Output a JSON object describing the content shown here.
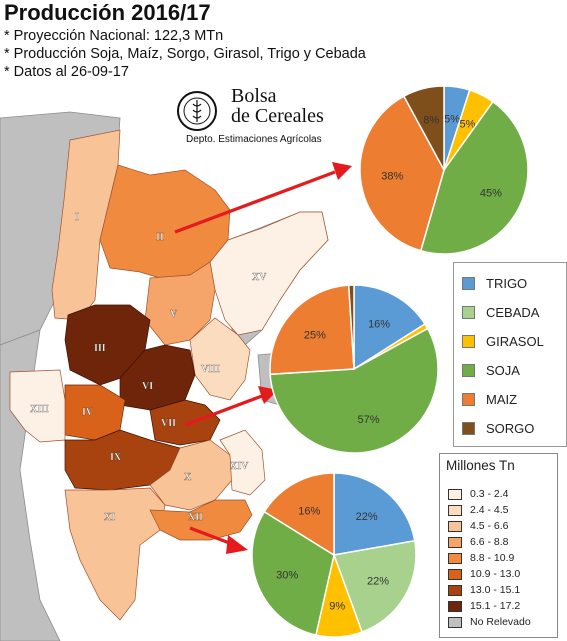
{
  "header": {
    "title": "Producción 2016/17",
    "lines": [
      "* Proyección Nacional: 122,3 MTn",
      "* Producción Soja, Maíz, Sorgo, Girasol, Trigo y Cebada",
      "* Datos al 26-09-17"
    ]
  },
  "logo": {
    "line1": "Bolsa",
    "line2": "de Cereales",
    "dept": "Depto. Estimaciones Agrícolas"
  },
  "crops": [
    {
      "name": "TRIGO",
      "color": "#5b9bd5"
    },
    {
      "name": "CEBADA",
      "color": "#a9d18e"
    },
    {
      "name": "GIRASOL",
      "color": "#ffc000"
    },
    {
      "name": "SOJA",
      "color": "#70ad47"
    },
    {
      "name": "MAIZ",
      "color": "#ed7d31"
    },
    {
      "name": "SORGO",
      "color": "#7f4f1b"
    }
  ],
  "production_legend": {
    "title": "Millones Tn",
    "classes": [
      {
        "label": "0.3 - 2.4",
        "color": "#fdf1e6"
      },
      {
        "label": "2.4 - 4.5",
        "color": "#fcdcbf"
      },
      {
        "label": "4.5 - 6.6",
        "color": "#f9c398"
      },
      {
        "label": "6.6 - 8.8",
        "color": "#f5a56a"
      },
      {
        "label": "8.8 - 10.9",
        "color": "#ef8a3f"
      },
      {
        "label": "10.9 - 13.0",
        "color": "#d9621a"
      },
      {
        "label": "13.0 - 15.1",
        "color": "#a8430f"
      },
      {
        "label": "15.1 - 17.2",
        "color": "#6e250a"
      },
      {
        "label": "No Relevado",
        "color": "#bfbfbf"
      }
    ]
  },
  "regions": [
    "I",
    "II",
    "III",
    "IV",
    "V",
    "VI",
    "VII",
    "VIII",
    "IX",
    "X",
    "XI",
    "XII",
    "XIII",
    "XIV",
    "XV"
  ],
  "pies": [
    {
      "region": "II",
      "slices": [
        {
          "crop": "TRIGO",
          "pct": 5,
          "label": "5%"
        },
        {
          "crop": "GIRASOL",
          "pct": 5,
          "label": "5%"
        },
        {
          "crop": "SOJA",
          "pct": 45,
          "label": "45%"
        },
        {
          "crop": "MAIZ",
          "pct": 38,
          "label": "38%"
        },
        {
          "crop": "SORGO",
          "pct": 8,
          "label": "8%"
        }
      ]
    },
    {
      "region": "VII",
      "slices": [
        {
          "crop": "TRIGO",
          "pct": 16,
          "label": "16%"
        },
        {
          "crop": "GIRASOL",
          "pct": 1,
          "label": ""
        },
        {
          "crop": "SOJA",
          "pct": 57,
          "label": "57%"
        },
        {
          "crop": "MAIZ",
          "pct": 25,
          "label": "25%"
        },
        {
          "crop": "SORGO",
          "pct": 1,
          "label": ""
        }
      ]
    },
    {
      "region": "XII",
      "slices": [
        {
          "crop": "TRIGO",
          "pct": 22,
          "label": "22%"
        },
        {
          "crop": "CEBADA",
          "pct": 22,
          "label": "22%"
        },
        {
          "crop": "GIRASOL",
          "pct": 9,
          "label": "9%"
        },
        {
          "crop": "SOJA",
          "pct": 30,
          "label": "30%"
        },
        {
          "crop": "MAIZ",
          "pct": 16,
          "label": "16%"
        }
      ]
    }
  ]
}
